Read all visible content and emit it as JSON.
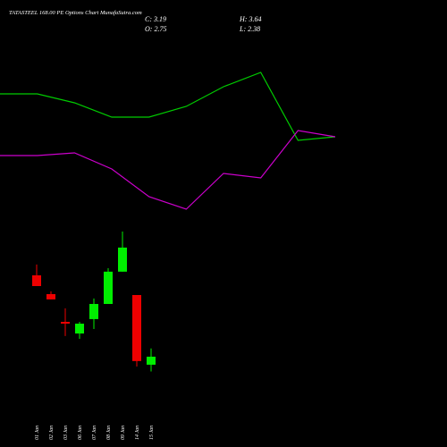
{
  "chart_data": [
    {
      "type": "candlestick",
      "title": "TATASTEEL 168.00 PE Options Chart MunafaSutra.com",
      "annotations": [
        "C: 3.19",
        "H: 3.64",
        "O: 2.75",
        "L: 2.38"
      ],
      "categories": [
        "01 Jan",
        "02 Jan",
        "03 Jan",
        "06 Jan",
        "07 Jan",
        "08 Jan",
        "09 Jan",
        "14 Jan",
        "15 Jan"
      ],
      "open": [
        7.65,
        6.62,
        5.1,
        4.46,
        5.25,
        6.08,
        7.85,
        6.57,
        2.75
      ],
      "high": [
        8.24,
        6.77,
        5.84,
        5.1,
        6.38,
        8.04,
        10.05,
        6.57,
        3.64
      ],
      "low": [
        7.06,
        6.33,
        4.32,
        4.17,
        4.71,
        6.08,
        7.85,
        2.65,
        2.38
      ],
      "close": [
        7.06,
        6.33,
        5.0,
        5.0,
        6.08,
        7.85,
        9.17,
        2.95,
        3.19
      ],
      "up_color": "#00ee00",
      "down_color": "#ee0000",
      "ylim": [
        -1.76,
        22.74
      ]
    },
    {
      "type": "line",
      "categories": [
        null,
        null,
        null,
        null,
        null,
        null,
        null,
        null,
        null,
        null
      ],
      "series": [
        {
          "color": "#00cc00",
          "values": [
            395,
            395,
            385,
            369,
            369,
            381,
            403,
            419,
            343,
            347
          ]
        },
        {
          "color": "#cc00cc",
          "values": [
            326,
            326,
            329,
            311,
            280,
            266,
            306,
            301,
            354,
            347
          ]
        }
      ],
      "ylim": [
        0,
        500
      ]
    }
  ]
}
